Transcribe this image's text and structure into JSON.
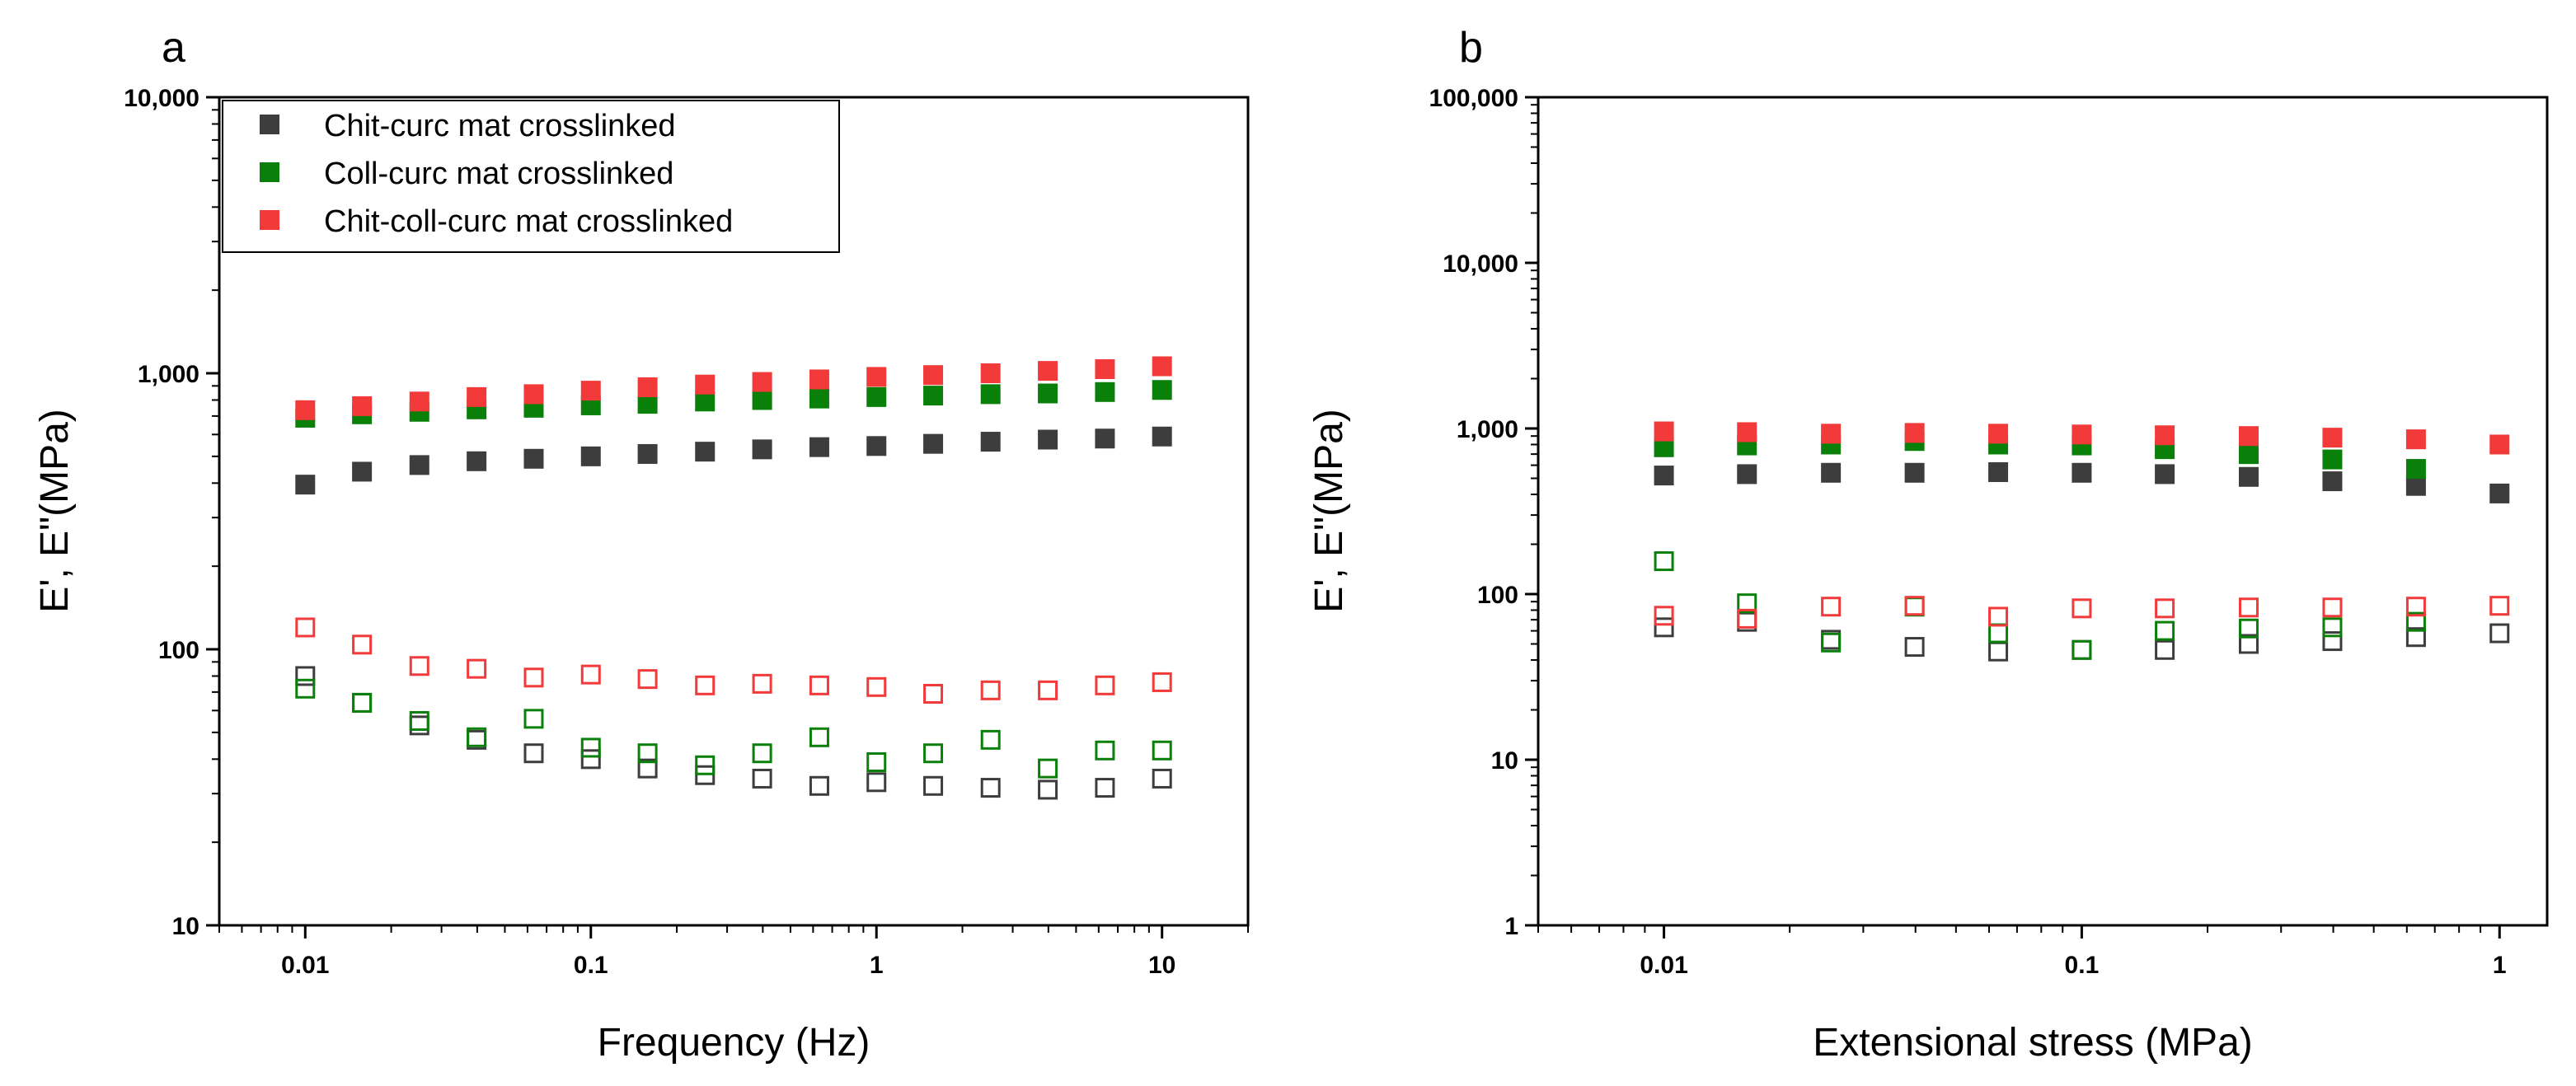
{
  "figure": {
    "panels": [
      "a",
      "b"
    ]
  },
  "legend": {
    "entries": [
      {
        "name": "Chit-curc mat crosslinked",
        "color": "#3d3d3d"
      },
      {
        "name": "Coll-curc mat crosslinked",
        "color": "#0a800a"
      },
      {
        "name": "Chit-coll-curc mat crosslinked",
        "color": "#f23a3a"
      }
    ]
  },
  "chart_data": [
    {
      "type": "scatter",
      "panel": "a",
      "xlabel": "Frequency (Hz)",
      "ylabel": "E', E\"(MPa)",
      "xscale": "log",
      "yscale": "log",
      "xlim": [
        0.005,
        20
      ],
      "ylim": [
        10,
        10000
      ],
      "xticks": [
        0.01,
        0.1,
        1,
        10
      ],
      "xtick_labels": [
        "0.01",
        "0.1",
        "1",
        "10"
      ],
      "yticks": [
        10,
        100,
        1000,
        10000
      ],
      "ytick_labels": [
        "10",
        "100",
        "1,000",
        "10,000"
      ],
      "legend_position": "top-left",
      "x": [
        0.01,
        0.0158,
        0.0251,
        0.0398,
        0.0631,
        0.1,
        0.158,
        0.251,
        0.398,
        0.631,
        1,
        1.58,
        2.51,
        3.98,
        6.31,
        10
      ],
      "series": [
        {
          "name": "Chit-curc mat crosslinked",
          "modulus": "E'",
          "marker": "filled-square",
          "color": "#3d3d3d",
          "values": [
            395,
            440,
            465,
            480,
            490,
            500,
            510,
            520,
            530,
            540,
            545,
            555,
            565,
            575,
            580,
            590
          ]
        },
        {
          "name": "Coll-curc mat crosslinked",
          "modulus": "E'",
          "marker": "filled-square",
          "color": "#0a800a",
          "values": [
            690,
            710,
            725,
            740,
            750,
            765,
            775,
            790,
            800,
            810,
            820,
            830,
            840,
            845,
            855,
            870
          ]
        },
        {
          "name": "Chit-coll-curc mat crosslinked",
          "modulus": "E'",
          "marker": "filled-square",
          "color": "#f23a3a",
          "values": [
            735,
            760,
            790,
            820,
            840,
            865,
            890,
            910,
            930,
            950,
            970,
            985,
            1000,
            1020,
            1035,
            1060
          ]
        },
        {
          "name": "Chit-curc mat crosslinked",
          "modulus": "E\"",
          "marker": "open-square",
          "color": "#3d3d3d",
          "values": [
            80,
            64,
            53,
            47,
            42,
            40,
            37,
            35,
            34,
            32,
            33,
            32,
            31.5,
            31,
            31.5,
            34
          ]
        },
        {
          "name": "Coll-curc mat crosslinked",
          "modulus": "E\"",
          "marker": "open-square",
          "color": "#0a800a",
          "values": [
            72,
            64,
            55,
            48,
            56,
            44,
            42,
            38,
            42,
            48,
            39,
            42,
            47,
            37,
            43,
            43
          ]
        },
        {
          "name": "Chit-coll-curc mat crosslinked",
          "modulus": "E\"",
          "marker": "open-square",
          "color": "#f23a3a",
          "values": [
            120,
            104,
            87,
            85,
            79,
            81,
            78,
            74,
            75,
            74,
            73,
            69,
            71,
            71,
            74,
            76
          ]
        }
      ]
    },
    {
      "type": "scatter",
      "panel": "b",
      "xlabel": "Extensional stress (MPa)",
      "ylabel": "E', E\"(MPa)",
      "xscale": "log",
      "yscale": "log",
      "xlim": [
        0.005,
        1.3
      ],
      "ylim": [
        1,
        100000
      ],
      "xticks": [
        0.01,
        0.1,
        1
      ],
      "xtick_labels": [
        "0.01",
        "0.1",
        "1"
      ],
      "yticks": [
        1,
        10,
        100,
        1000,
        10000,
        100000
      ],
      "ytick_labels": [
        "1",
        "10",
        "100",
        "1,000",
        "10,000",
        "100,000"
      ],
      "x": [
        0.01,
        0.0158,
        0.0251,
        0.0398,
        0.0631,
        0.1,
        0.158,
        0.251,
        0.398,
        0.631,
        1
      ],
      "series": [
        {
          "name": "Chit-curc mat crosslinked",
          "modulus": "E'",
          "marker": "filled-square",
          "color": "#3d3d3d",
          "values": [
            520,
            530,
            540,
            540,
            545,
            540,
            530,
            510,
            480,
            450,
            405
          ]
        },
        {
          "name": "Coll-curc mat crosslinked",
          "modulus": "E'",
          "marker": "filled-square",
          "color": "#0a800a",
          "values": [
            770,
            790,
            800,
            840,
            800,
            790,
            750,
            700,
            650,
            570,
            null
          ]
        },
        {
          "name": "Chit-coll-curc mat crosslinked",
          "modulus": "E'",
          "marker": "filled-square",
          "color": "#f23a3a",
          "values": [
            960,
            950,
            930,
            940,
            930,
            920,
            910,
            900,
            880,
            860,
            800
          ]
        },
        {
          "name": "Chit-curc mat crosslinked",
          "modulus": "E\"",
          "marker": "open-square",
          "color": "#3d3d3d",
          "values": [
            63,
            68,
            53,
            48,
            45,
            46,
            46,
            50,
            52,
            55,
            58
          ]
        },
        {
          "name": "Coll-curc mat crosslinked",
          "modulus": "E\"",
          "marker": "open-square",
          "color": "#0a800a",
          "values": [
            158,
            88,
            51,
            84,
            58,
            46,
            60,
            62,
            63,
            68,
            null
          ]
        },
        {
          "name": "Chit-coll-curc mat crosslinked",
          "modulus": "E\"",
          "marker": "open-square",
          "color": "#f23a3a",
          "values": [
            74,
            71,
            84,
            85,
            73,
            82,
            82,
            83,
            83,
            84,
            85
          ]
        }
      ]
    }
  ]
}
